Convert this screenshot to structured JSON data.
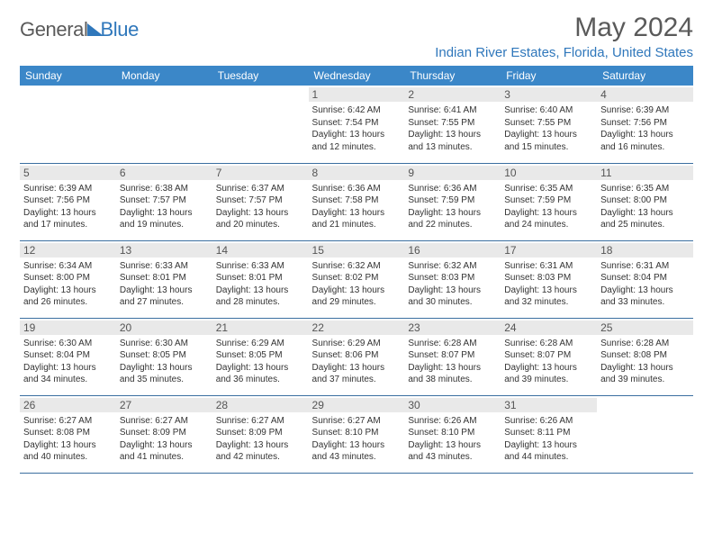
{
  "brand": {
    "word1": "General",
    "word2": "Blue"
  },
  "header": {
    "monthTitle": "May 2024",
    "location": "Indian River Estates, Florida, United States"
  },
  "columns": [
    "Sunday",
    "Monday",
    "Tuesday",
    "Wednesday",
    "Thursday",
    "Friday",
    "Saturday"
  ],
  "colors": {
    "headerBg": "#3b87c8",
    "headerText": "#ffffff",
    "dayNumBg": "#e9e9e9",
    "accent": "#2f77bb",
    "rowBorder": "#3b6fa0"
  },
  "weeks": [
    [
      {
        "n": "",
        "sr": "",
        "ss": "",
        "dl": ""
      },
      {
        "n": "",
        "sr": "",
        "ss": "",
        "dl": ""
      },
      {
        "n": "",
        "sr": "",
        "ss": "",
        "dl": ""
      },
      {
        "n": "1",
        "sr": "6:42 AM",
        "ss": "7:54 PM",
        "dl": "13 hours and 12 minutes."
      },
      {
        "n": "2",
        "sr": "6:41 AM",
        "ss": "7:55 PM",
        "dl": "13 hours and 13 minutes."
      },
      {
        "n": "3",
        "sr": "6:40 AM",
        "ss": "7:55 PM",
        "dl": "13 hours and 15 minutes."
      },
      {
        "n": "4",
        "sr": "6:39 AM",
        "ss": "7:56 PM",
        "dl": "13 hours and 16 minutes."
      }
    ],
    [
      {
        "n": "5",
        "sr": "6:39 AM",
        "ss": "7:56 PM",
        "dl": "13 hours and 17 minutes."
      },
      {
        "n": "6",
        "sr": "6:38 AM",
        "ss": "7:57 PM",
        "dl": "13 hours and 19 minutes."
      },
      {
        "n": "7",
        "sr": "6:37 AM",
        "ss": "7:57 PM",
        "dl": "13 hours and 20 minutes."
      },
      {
        "n": "8",
        "sr": "6:36 AM",
        "ss": "7:58 PM",
        "dl": "13 hours and 21 minutes."
      },
      {
        "n": "9",
        "sr": "6:36 AM",
        "ss": "7:59 PM",
        "dl": "13 hours and 22 minutes."
      },
      {
        "n": "10",
        "sr": "6:35 AM",
        "ss": "7:59 PM",
        "dl": "13 hours and 24 minutes."
      },
      {
        "n": "11",
        "sr": "6:35 AM",
        "ss": "8:00 PM",
        "dl": "13 hours and 25 minutes."
      }
    ],
    [
      {
        "n": "12",
        "sr": "6:34 AM",
        "ss": "8:00 PM",
        "dl": "13 hours and 26 minutes."
      },
      {
        "n": "13",
        "sr": "6:33 AM",
        "ss": "8:01 PM",
        "dl": "13 hours and 27 minutes."
      },
      {
        "n": "14",
        "sr": "6:33 AM",
        "ss": "8:01 PM",
        "dl": "13 hours and 28 minutes."
      },
      {
        "n": "15",
        "sr": "6:32 AM",
        "ss": "8:02 PM",
        "dl": "13 hours and 29 minutes."
      },
      {
        "n": "16",
        "sr": "6:32 AM",
        "ss": "8:03 PM",
        "dl": "13 hours and 30 minutes."
      },
      {
        "n": "17",
        "sr": "6:31 AM",
        "ss": "8:03 PM",
        "dl": "13 hours and 32 minutes."
      },
      {
        "n": "18",
        "sr": "6:31 AM",
        "ss": "8:04 PM",
        "dl": "13 hours and 33 minutes."
      }
    ],
    [
      {
        "n": "19",
        "sr": "6:30 AM",
        "ss": "8:04 PM",
        "dl": "13 hours and 34 minutes."
      },
      {
        "n": "20",
        "sr": "6:30 AM",
        "ss": "8:05 PM",
        "dl": "13 hours and 35 minutes."
      },
      {
        "n": "21",
        "sr": "6:29 AM",
        "ss": "8:05 PM",
        "dl": "13 hours and 36 minutes."
      },
      {
        "n": "22",
        "sr": "6:29 AM",
        "ss": "8:06 PM",
        "dl": "13 hours and 37 minutes."
      },
      {
        "n": "23",
        "sr": "6:28 AM",
        "ss": "8:07 PM",
        "dl": "13 hours and 38 minutes."
      },
      {
        "n": "24",
        "sr": "6:28 AM",
        "ss": "8:07 PM",
        "dl": "13 hours and 39 minutes."
      },
      {
        "n": "25",
        "sr": "6:28 AM",
        "ss": "8:08 PM",
        "dl": "13 hours and 39 minutes."
      }
    ],
    [
      {
        "n": "26",
        "sr": "6:27 AM",
        "ss": "8:08 PM",
        "dl": "13 hours and 40 minutes."
      },
      {
        "n": "27",
        "sr": "6:27 AM",
        "ss": "8:09 PM",
        "dl": "13 hours and 41 minutes."
      },
      {
        "n": "28",
        "sr": "6:27 AM",
        "ss": "8:09 PM",
        "dl": "13 hours and 42 minutes."
      },
      {
        "n": "29",
        "sr": "6:27 AM",
        "ss": "8:10 PM",
        "dl": "13 hours and 43 minutes."
      },
      {
        "n": "30",
        "sr": "6:26 AM",
        "ss": "8:10 PM",
        "dl": "13 hours and 43 minutes."
      },
      {
        "n": "31",
        "sr": "6:26 AM",
        "ss": "8:11 PM",
        "dl": "13 hours and 44 minutes."
      },
      {
        "n": "",
        "sr": "",
        "ss": "",
        "dl": ""
      }
    ]
  ],
  "labels": {
    "sunrise": "Sunrise:",
    "sunset": "Sunset:",
    "daylight": "Daylight:"
  }
}
